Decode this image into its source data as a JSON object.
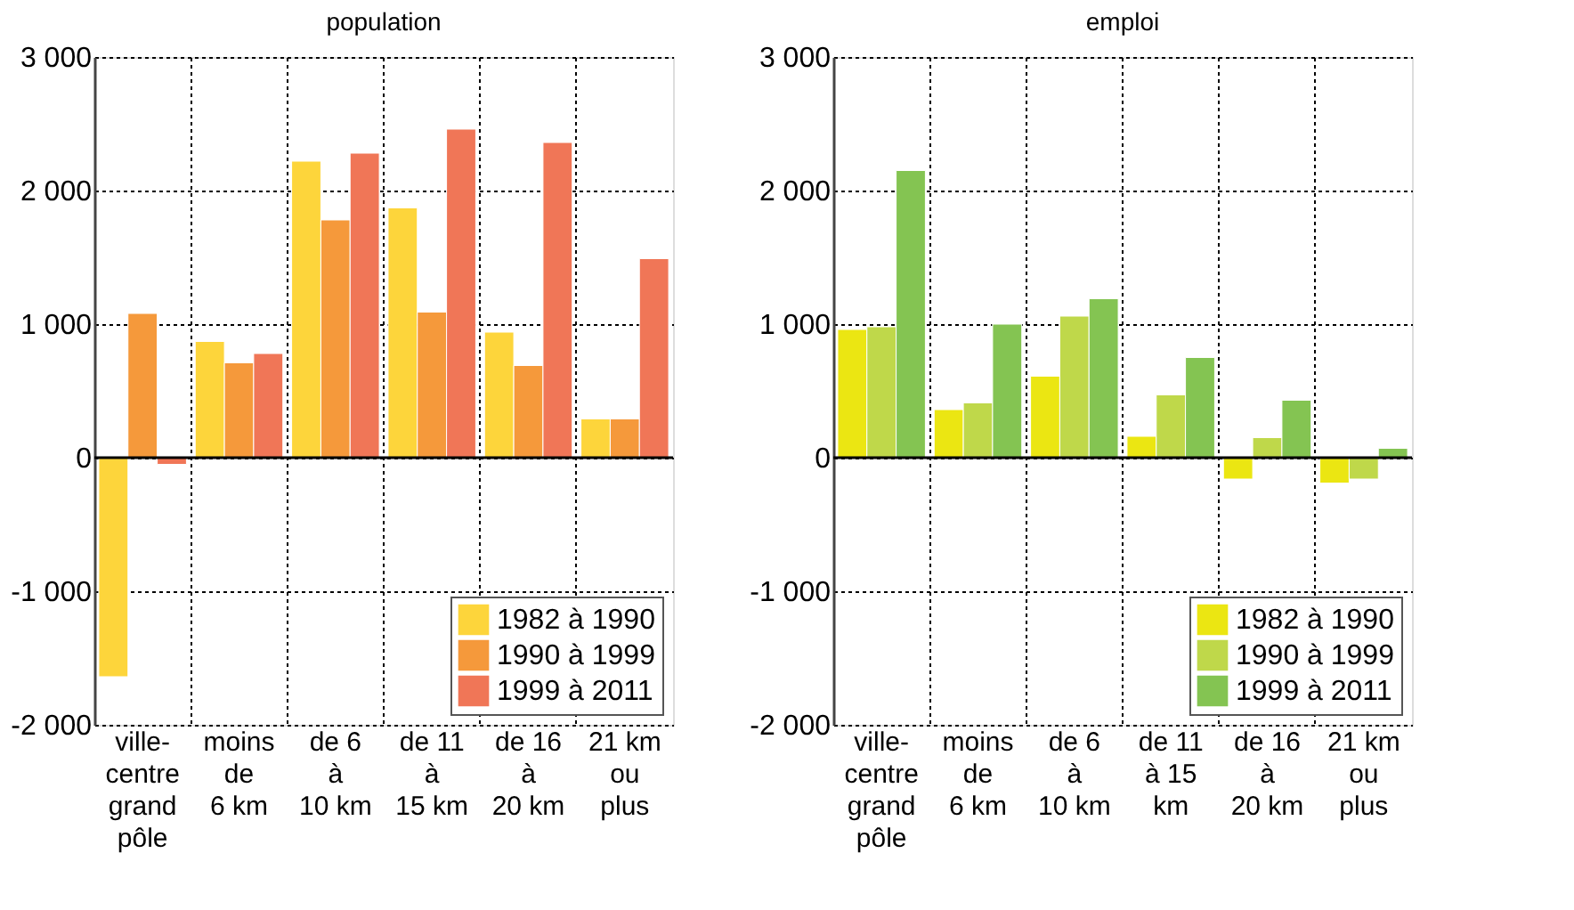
{
  "chart_data": [
    {
      "type": "bar",
      "title": "population",
      "categories": [
        "ville-\ncentre\ngrand\npôle",
        "moins\nde\n6 km",
        "de 6\nà\n10 km",
        "de 11\nà\n15 km",
        "de 16\nà\n20 km",
        "21 km\nou\nplus"
      ],
      "series": [
        {
          "name": "1982 à 1990",
          "color": "#fdd53b",
          "values": [
            -1640,
            870,
            2220,
            1870,
            940,
            290
          ]
        },
        {
          "name": "1990 à 1999",
          "color": "#f5993b",
          "values": [
            1080,
            710,
            1780,
            1090,
            690,
            290
          ]
        },
        {
          "name": "1999 à 2011",
          "color": "#f07657",
          "values": [
            -50,
            780,
            2280,
            2460,
            2360,
            1490
          ]
        }
      ],
      "ylim": [
        -2000,
        3000
      ],
      "yticks": [
        {
          "value": -2000,
          "label": "-2 000"
        },
        {
          "value": -1000,
          "label": "-1 000"
        },
        0,
        {
          "value": 1000,
          "label": "1 000"
        },
        {
          "value": 2000,
          "label": "2 000"
        },
        {
          "value": 3000,
          "label": "3 000"
        }
      ],
      "ref_lines": [
        {
          "axis": "y",
          "value": 0,
          "color": "#000000"
        }
      ],
      "grid": true,
      "legend": "bottom right"
    },
    {
      "type": "bar",
      "title": "emploi",
      "categories": [
        "ville-\ncentre\ngrand\npôle",
        "moins\nde\n6 km",
        "de 6\nà\n10 km",
        "de 11\nà 15\nkm",
        "de 16\nà\n20 km",
        "21 km\nou\nplus"
      ],
      "series": [
        {
          "name": "1982 à 1990",
          "color": "#ebe612",
          "values": [
            960,
            360,
            610,
            160,
            -160,
            -190
          ]
        },
        {
          "name": "1990 à 1999",
          "color": "#bfd84a",
          "values": [
            980,
            410,
            1060,
            470,
            150,
            -160
          ]
        },
        {
          "name": "1999 à 2011",
          "color": "#84c452",
          "values": [
            2150,
            1000,
            1190,
            750,
            430,
            70
          ]
        }
      ],
      "ylim": [
        -2000,
        3000
      ],
      "yticks": [
        {
          "value": -2000,
          "label": "-2 000"
        },
        {
          "value": -1000,
          "label": "-1 000"
        },
        0,
        {
          "value": 1000,
          "label": "1 000"
        },
        {
          "value": 2000,
          "label": "2 000"
        },
        {
          "value": 3000,
          "label": "3 000"
        }
      ],
      "ref_lines": [
        {
          "axis": "y",
          "value": 0,
          "color": "#000000"
        }
      ],
      "grid": true,
      "legend": "bottom right"
    }
  ]
}
